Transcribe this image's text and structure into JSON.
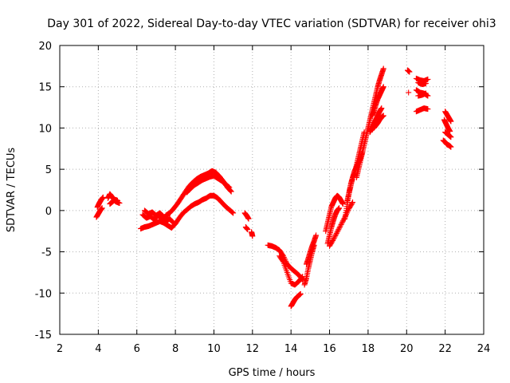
{
  "chart_data": {
    "type": "scatter",
    "title": "Day 301 of 2022, Sidereal Day-to-day VTEC variation (SDTVAR) for receiver ohi3",
    "xlabel": "GPS time / hours",
    "ylabel": "SDTVAR / TECUs",
    "xlim": [
      2,
      24
    ],
    "ylim": [
      -15,
      20
    ],
    "xticks": [
      2,
      4,
      6,
      8,
      10,
      12,
      14,
      16,
      18,
      20,
      22,
      24
    ],
    "yticks": [
      -15,
      -10,
      -5,
      0,
      5,
      10,
      15,
      20
    ],
    "grid": true,
    "marker": "+",
    "series": [
      {
        "name": "SDTVAR",
        "color": "#ff0000",
        "tracks": [
          {
            "x": [
              3.9,
              4.0,
              4.1,
              4.2
            ],
            "y": [
              -0.8,
              -0.4,
              0.0,
              0.3
            ]
          },
          {
            "x": [
              3.95,
              4.05,
              4.15,
              4.25
            ],
            "y": [
              0.4,
              0.9,
              1.3,
              1.6
            ]
          },
          {
            "x": [
              4.5,
              4.6,
              4.7,
              4.8,
              4.9,
              5.0,
              5.1
            ],
            "y": [
              1.5,
              2.0,
              1.7,
              1.4,
              1.1,
              1.0,
              0.9
            ]
          },
          {
            "x": [
              4.6,
              4.7,
              4.8,
              4.9,
              5.0
            ],
            "y": [
              0.8,
              1.0,
              1.2,
              1.3,
              1.2
            ]
          },
          {
            "x": [
              6.2,
              6.4,
              6.6,
              6.8,
              7.0,
              7.2,
              7.4,
              7.6,
              7.8,
              8.0,
              8.2,
              8.4,
              8.6,
              8.8,
              9.0,
              9.2,
              9.4,
              9.6,
              9.8,
              10.0,
              10.2,
              10.4,
              10.6,
              10.8,
              11.0
            ],
            "y": [
              -2.2,
              -2.0,
              -1.9,
              -1.7,
              -1.5,
              -1.3,
              -1.5,
              -1.8,
              -2.1,
              -1.6,
              -0.9,
              -0.3,
              0.1,
              0.5,
              0.8,
              1.0,
              1.3,
              1.5,
              1.8,
              1.8,
              1.5,
              1.0,
              0.5,
              0.1,
              -0.3
            ]
          },
          {
            "x": [
              6.3,
              6.5,
              6.7,
              6.9,
              7.1,
              7.3,
              7.5,
              7.7,
              7.9
            ],
            "y": [
              -0.5,
              -0.9,
              -0.7,
              -1.1,
              -0.6,
              -0.9,
              -1.3,
              -1.0,
              -1.5
            ]
          },
          {
            "x": [
              6.4,
              6.6,
              6.8,
              7.0,
              7.2,
              7.4,
              7.6
            ],
            "y": [
              0.0,
              -0.4,
              -0.2,
              -0.6,
              -0.3,
              -0.8,
              -0.6
            ]
          },
          {
            "x": [
              7.5,
              7.7,
              7.9,
              8.1,
              8.3,
              8.5,
              8.7,
              8.9,
              9.1,
              9.3,
              9.5,
              9.7,
              9.9,
              10.1,
              10.3,
              10.5,
              10.7,
              10.9
            ],
            "y": [
              -0.6,
              -0.3,
              0.2,
              0.8,
              1.5,
              2.2,
              2.9,
              3.4,
              3.8,
              4.1,
              4.3,
              4.5,
              4.8,
              4.6,
              4.1,
              3.5,
              2.8,
              2.3
            ]
          },
          {
            "x": [
              8.6,
              8.8,
              9.0,
              9.2,
              9.4,
              9.6,
              9.8,
              10.0,
              10.2,
              10.4,
              10.6,
              10.8
            ],
            "y": [
              2.2,
              2.7,
              3.1,
              3.4,
              3.7,
              3.9,
              4.1,
              4.2,
              3.9,
              3.6,
              3.2,
              2.8
            ]
          },
          {
            "x": [
              11.6,
              11.7,
              11.8
            ],
            "y": [
              -0.3,
              -0.6,
              -1.0
            ]
          },
          {
            "x": [
              11.65,
              11.75
            ],
            "y": [
              -2.0,
              -2.3
            ]
          },
          {
            "x": [
              11.95,
              12.0
            ],
            "y": [
              -2.6,
              -3.1
            ]
          },
          {
            "x": [
              12.8,
              13.0,
              13.2,
              13.4,
              13.6,
              13.8,
              14.0,
              14.2,
              14.4,
              14.6
            ],
            "y": [
              -4.2,
              -4.3,
              -4.5,
              -4.8,
              -5.5,
              -6.5,
              -7.0,
              -7.4,
              -7.8,
              -8.4
            ]
          },
          {
            "x": [
              13.4,
              13.6,
              13.8,
              14.0,
              14.2,
              14.4,
              14.6
            ],
            "y": [
              -5.5,
              -6.2,
              -7.5,
              -8.8,
              -9.0,
              -8.6,
              -8.0
            ]
          },
          {
            "x": [
              14.0,
              14.1,
              14.2,
              14.3,
              14.4,
              14.5
            ],
            "y": [
              -11.6,
              -11.2,
              -10.8,
              -10.5,
              -10.3,
              -10.1
            ]
          },
          {
            "x": [
              14.7,
              14.8,
              14.9,
              15.0,
              15.1,
              15.2
            ],
            "y": [
              -9.0,
              -8.2,
              -7.0,
              -6.0,
              -5.0,
              -4.2
            ]
          },
          {
            "x": [
              14.8,
              14.9,
              15.0,
              15.1,
              15.2,
              15.3
            ],
            "y": [
              -6.5,
              -5.8,
              -5.0,
              -4.3,
              -3.7,
              -3.0
            ]
          },
          {
            "x": [
              15.8,
              15.9,
              16.0,
              16.1,
              16.2,
              16.3,
              16.4,
              16.5,
              16.6,
              16.7
            ],
            "y": [
              -2.5,
              -1.5,
              -0.5,
              0.5,
              1.0,
              1.5,
              1.8,
              1.6,
              1.2,
              0.8
            ]
          },
          {
            "x": [
              15.9,
              16.0,
              16.1,
              16.2,
              16.3,
              16.4,
              16.5
            ],
            "y": [
              -4.0,
              -3.0,
              -2.0,
              -1.2,
              -0.5,
              0.0,
              0.3
            ]
          },
          {
            "x": [
              16.0,
              16.2,
              16.4,
              16.6,
              16.8,
              17.0,
              17.2
            ],
            "y": [
              -4.3,
              -3.5,
              -2.6,
              -1.7,
              -0.8,
              0.2,
              1.0
            ]
          },
          {
            "x": [
              16.8,
              16.9,
              17.0,
              17.1,
              17.2,
              17.3,
              17.4,
              17.5,
              17.6,
              17.7,
              17.8
            ],
            "y": [
              -1.0,
              0.5,
              2.0,
              3.0,
              4.0,
              4.5,
              5.5,
              6.5,
              7.5,
              8.5,
              9.5
            ]
          },
          {
            "x": [
              16.9,
              17.0,
              17.1,
              17.2,
              17.3,
              17.4,
              17.5,
              17.6,
              17.7
            ],
            "y": [
              1.0,
              2.0,
              3.2,
              4.0,
              4.8,
              5.3,
              5.8,
              6.3,
              7.0
            ]
          },
          {
            "x": [
              17.4,
              17.5,
              17.6,
              17.7,
              17.8,
              17.9,
              18.0,
              18.1,
              18.2,
              18.3,
              18.4,
              18.5,
              18.6,
              18.7,
              18.8
            ],
            "y": [
              4.0,
              5.0,
              6.0,
              7.0,
              8.0,
              9.0,
              10.0,
              11.0,
              12.0,
              13.0,
              14.0,
              15.0,
              15.8,
              16.5,
              17.2
            ]
          },
          {
            "x": [
              18.1,
              18.2,
              18.3,
              18.4,
              18.5,
              18.6,
              18.7
            ],
            "y": [
              9.5,
              10.0,
              10.5,
              11.0,
              11.5,
              12.0,
              12.4
            ]
          },
          {
            "x": [
              18.2,
              18.3,
              18.4,
              18.5,
              18.6,
              18.7,
              18.8
            ],
            "y": [
              11.5,
              12.0,
              12.8,
              13.5,
              14.0,
              14.5,
              15.0
            ]
          },
          {
            "x": [
              18.3,
              18.4,
              18.5,
              18.6,
              18.7,
              18.8
            ],
            "y": [
              10.0,
              10.3,
              10.6,
              11.0,
              11.3,
              11.5
            ]
          },
          {
            "x": [
              20.05,
              20.15
            ],
            "y": [
              17.0,
              16.8
            ]
          },
          {
            "x": [
              20.1
            ],
            "y": [
              14.3
            ]
          },
          {
            "x": [
              20.5,
              20.7,
              20.9,
              21.1
            ],
            "y": [
              16.0,
              15.8,
              15.7,
              15.9
            ]
          },
          {
            "x": [
              20.6,
              20.8,
              21.0
            ],
            "y": [
              15.5,
              15.3,
              15.4
            ]
          },
          {
            "x": [
              20.5,
              20.7,
              20.9,
              21.1
            ],
            "y": [
              14.6,
              14.3,
              14.2,
              13.9
            ]
          },
          {
            "x": [
              20.6,
              20.8,
              21.0
            ],
            "y": [
              13.9,
              14.0,
              14.2
            ]
          },
          {
            "x": [
              20.5,
              20.7,
              20.9,
              21.1
            ],
            "y": [
              12.0,
              12.2,
              12.4,
              12.3
            ]
          },
          {
            "x": [
              22.0,
              22.1,
              22.2,
              22.3
            ],
            "y": [
              12.0,
              11.6,
              11.2,
              10.8
            ]
          },
          {
            "x": [
              21.95,
              22.05,
              22.15,
              22.25
            ],
            "y": [
              11.0,
              10.5,
              10.0,
              9.6
            ]
          },
          {
            "x": [
              22.0,
              22.1,
              22.2,
              22.3
            ],
            "y": [
              9.5,
              9.3,
              9.1,
              8.9
            ]
          },
          {
            "x": [
              21.9,
              22.0,
              22.1,
              22.2,
              22.3
            ],
            "y": [
              8.5,
              8.3,
              8.0,
              7.9,
              7.7
            ]
          }
        ]
      }
    ]
  }
}
